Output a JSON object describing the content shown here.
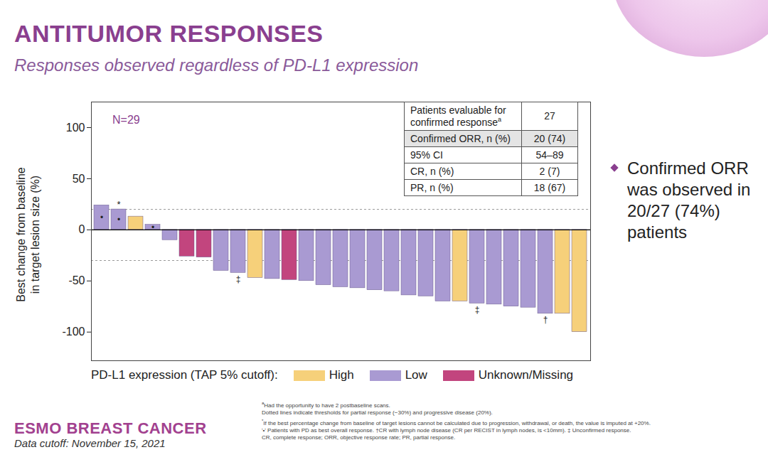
{
  "title": "ANTITUMOR RESPONSES",
  "subtitle": "Responses observed regardless of PD-L1 expression",
  "chart_data": {
    "type": "bar",
    "annotation": "N=29",
    "ylabel": [
      "Best change from baseline",
      "in target lesion size (%)"
    ],
    "categories": [
      null,
      null,
      null,
      null,
      null,
      null,
      null,
      null,
      null,
      null,
      null,
      null,
      null,
      null,
      null,
      null,
      null,
      null,
      null,
      null,
      null,
      null,
      null,
      null,
      null,
      null,
      null,
      null,
      null
    ],
    "series": [
      {
        "name": "High",
        "color": "#f6d07a",
        "values": [
          null,
          null,
          13,
          null,
          null,
          null,
          null,
          null,
          null,
          -47,
          null,
          null,
          null,
          null,
          null,
          null,
          null,
          null,
          null,
          null,
          null,
          -70,
          null,
          null,
          null,
          null,
          null,
          -82,
          -100
        ]
      },
      {
        "name": "Low",
        "color": "#a99ad2",
        "values": [
          24,
          20,
          null,
          5,
          -10,
          null,
          null,
          -40,
          -42,
          null,
          -48,
          null,
          -50,
          -54,
          -56,
          -57,
          -59,
          -60,
          -64,
          -65,
          -70,
          null,
          -72,
          -73,
          -75,
          -76,
          -82,
          null,
          null
        ]
      },
      {
        "name": "Unknown/Missing",
        "color": "#c2457e",
        "values": [
          null,
          null,
          null,
          null,
          null,
          -26,
          -27,
          null,
          null,
          null,
          null,
          -49,
          null,
          null,
          null,
          null,
          null,
          null,
          null,
          null,
          null,
          null,
          null,
          null,
          null,
          null,
          null,
          null,
          null
        ]
      }
    ],
    "legend_title": "PD-L1 expression (TAP 5% cutoff):",
    "legend": "bottom",
    "ylim": [
      -128,
      125
    ],
    "yticks": [
      -100,
      -50,
      0,
      50,
      100
    ],
    "reference_lines": [
      20,
      -30
    ],
    "pd_marks": [
      "•",
      "•",
      null,
      "•",
      null,
      null,
      null,
      null,
      null,
      null,
      null,
      null,
      null,
      null,
      null,
      null,
      null,
      null,
      null,
      null,
      null,
      null,
      null,
      null,
      null,
      null,
      null,
      null,
      null
    ],
    "footnote_marks": [
      null,
      "*",
      null,
      null,
      null,
      null,
      null,
      null,
      "‡",
      null,
      null,
      null,
      null,
      null,
      null,
      null,
      null,
      null,
      null,
      null,
      null,
      null,
      "‡",
      null,
      null,
      null,
      "†",
      null,
      null
    ],
    "tick_labels": "y"
  },
  "table": {
    "rows": [
      {
        "label": "Patients evaluable for confirmed response",
        "sup": "a",
        "value": "27"
      },
      {
        "label": "Confirmed ORR, n (%)",
        "value": "20 (74)"
      },
      {
        "label": "95% CI",
        "value": "54–89"
      },
      {
        "label": "CR, n (%)",
        "value": "2 (7)"
      },
      {
        "label": "PR, n (%)",
        "value": "18 (67)"
      }
    ]
  },
  "bullet": "Confirmed ORR was observed in 20/27 (74%) patients",
  "footnotes": [
    {
      "sup": "a",
      "text": "Had the opportunity to have 2 postbaseline scans."
    },
    {
      "text": "Dotted lines indicate thresholds for partial response (−30%) and progressive disease (20%)."
    },
    {
      "sup": "*",
      "text": "If the best percentage change from baseline of target lesions cannot be calculated due to progression, withdrawal, or death, the value is imputed at +20%."
    },
    {
      "text": "'•' Patients with PD as best overall response. †CR with lymph node disease (CR per RECIST in lymph nodes, is <10mm). ‡ Unconfirmed response."
    },
    {
      "text": "CR, complete response; ORR, objective response rate; PR, partial response."
    }
  ],
  "logo": "ESMO BREAST CANCER",
  "data_cutoff": "Data cutoff: November 15, 2021"
}
